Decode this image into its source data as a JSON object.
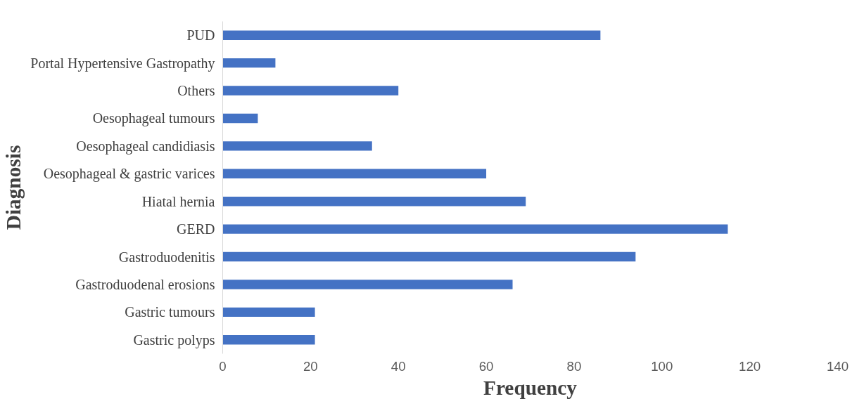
{
  "chart_data": {
    "type": "bar",
    "orientation": "horizontal",
    "xlabel": "Frequency",
    "ylabel": "Diagnosis",
    "color": "#4472c4",
    "categories": [
      "PUD",
      "Portal Hypertensive Gastropathy",
      "Others",
      "Oesophageal tumours",
      "Oesophageal candidiasis",
      "Oesophageal & gastric varices",
      "Hiatal hernia",
      "GERD",
      "Gastroduodenitis",
      "Gastroduodenal erosions",
      "Gastric tumours",
      "Gastric polyps"
    ],
    "values": [
      86,
      12,
      40,
      8,
      34,
      60,
      69,
      115,
      94,
      66,
      21,
      21
    ],
    "xlim": [
      0,
      140
    ],
    "xticks": [
      0,
      20,
      40,
      60,
      80,
      100,
      120,
      140
    ],
    "grid": false
  }
}
